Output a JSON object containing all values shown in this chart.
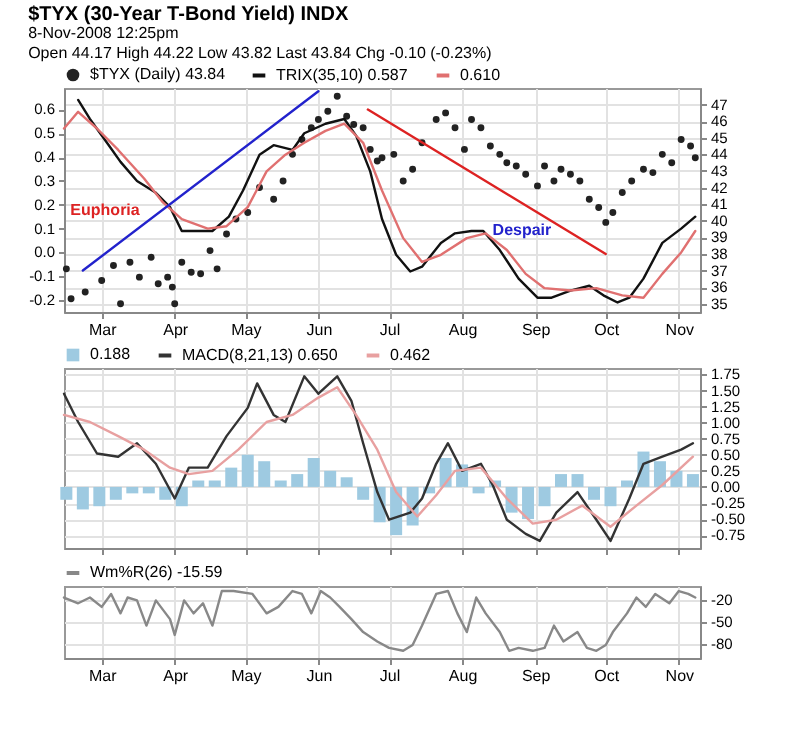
{
  "chart_data": [
    {
      "type": "line",
      "title": "$TYX (30-Year T-Bond Yield) INDX",
      "subtitle": "8-Nov-2008 12:25pm",
      "annotations": [
        "Open 44.17 High 44.22 Low 43.82 Last 43.84 Chg -0.10 (-0.23%)",
        "Euphoria",
        "Despair"
      ],
      "legend": "top left",
      "grid": true,
      "xlim": [
        "2008-02-14",
        "2008-11-10"
      ],
      "xticks": [
        {
          "value": "2008-03-01",
          "label": "Mar"
        },
        {
          "value": "2008-04-01",
          "label": "Apr"
        },
        {
          "value": "2008-05-01",
          "label": "May"
        },
        {
          "value": "2008-06-01",
          "label": "Jun"
        },
        {
          "value": "2008-07-01",
          "label": "Jul"
        },
        {
          "value": "2008-08-01",
          "label": "Aug"
        },
        {
          "value": "2008-09-01",
          "label": "Sep"
        },
        {
          "value": "2008-10-01",
          "label": "Oct"
        },
        {
          "value": "2008-11-01",
          "label": "Nov"
        }
      ],
      "ylim": [
        -0.25,
        0.69
      ],
      "yticks": [
        -0.2,
        -0.1,
        {
          "value": 0,
          "label": "0.0"
        },
        0.1,
        0.2,
        0.3,
        0.4,
        0.5,
        0.6
      ],
      "y2lim": [
        34.5,
        48
      ],
      "y2ticks": [
        35,
        36,
        37,
        38,
        39,
        40,
        41,
        42,
        43,
        44,
        45,
        46,
        47
      ],
      "series": [
        {
          "name": "$TYX (Daily) 43.84",
          "type": "scatter",
          "axis": "y2",
          "color": "#222222",
          "x": [
            "2008-02-15",
            "2008-02-17",
            "2008-02-23",
            "2008-03-01",
            "2008-03-06",
            "2008-03-09",
            "2008-03-13",
            "2008-03-17",
            "2008-03-22",
            "2008-03-25",
            "2008-03-29",
            "2008-03-31",
            "2008-04-01",
            "2008-04-04",
            "2008-04-08",
            "2008-04-12",
            "2008-04-16",
            "2008-04-19",
            "2008-04-23",
            "2008-04-27",
            "2008-05-02",
            "2008-05-07",
            "2008-05-13",
            "2008-05-17",
            "2008-05-21",
            "2008-05-25",
            "2008-05-29",
            "2008-06-01",
            "2008-06-05",
            "2008-06-09",
            "2008-06-13",
            "2008-06-16",
            "2008-06-20",
            "2008-06-23",
            "2008-06-26",
            "2008-06-28",
            "2008-07-03",
            "2008-07-07",
            "2008-07-11",
            "2008-07-15",
            "2008-07-21",
            "2008-07-25",
            "2008-07-29",
            "2008-08-02",
            "2008-08-05",
            "2008-08-09",
            "2008-08-13",
            "2008-08-17",
            "2008-08-20",
            "2008-08-24",
            "2008-08-28",
            "2008-09-02",
            "2008-09-05",
            "2008-09-09",
            "2008-09-12",
            "2008-09-16",
            "2008-09-20",
            "2008-09-24",
            "2008-09-28",
            "2008-10-01",
            "2008-10-04",
            "2008-10-08",
            "2008-10-12",
            "2008-10-17",
            "2008-10-21",
            "2008-10-25",
            "2008-10-29",
            "2008-11-02",
            "2008-11-06",
            "2008-11-08"
          ],
          "values": [
            37.1,
            35.3,
            35.7,
            36.4,
            37.3,
            35.0,
            37.5,
            36.6,
            37.8,
            36.2,
            36.6,
            36.0,
            35.0,
            37.5,
            36.9,
            36.8,
            38.2,
            37.1,
            39.2,
            40.1,
            40.5,
            42.0,
            41.3,
            42.4,
            44.0,
            44.9,
            45.6,
            46.1,
            46.6,
            47.5,
            46.3,
            45.8,
            45.6,
            44.3,
            43.6,
            43.8,
            44.0,
            42.4,
            43.1,
            44.7,
            46.1,
            46.5,
            45.6,
            44.3,
            46.1,
            45.6,
            44.5,
            44.0,
            43.5,
            43.3,
            42.8,
            42.1,
            43.3,
            42.4,
            43.1,
            42.8,
            42.4,
            41.3,
            40.8,
            39.9,
            40.5,
            41.7,
            42.4,
            43.1,
            42.9,
            44.0,
            43.5,
            44.9,
            44.5,
            43.8
          ]
        },
        {
          "name": "TRIX(35,10) 0.587",
          "color": "#111111",
          "x": [
            "2008-02-20",
            "2008-02-25",
            "2008-03-04",
            "2008-03-09",
            "2008-03-16",
            "2008-03-24",
            "2008-03-30",
            "2008-04-04",
            "2008-04-09",
            "2008-04-17",
            "2008-04-24",
            "2008-04-30",
            "2008-05-07",
            "2008-05-13",
            "2008-05-21",
            "2008-05-26",
            "2008-06-04",
            "2008-06-12",
            "2008-06-17",
            "2008-06-23",
            "2008-06-28",
            "2008-07-04",
            "2008-07-10",
            "2008-07-15",
            "2008-07-23",
            "2008-07-29",
            "2008-08-05",
            "2008-08-10",
            "2008-08-17",
            "2008-08-25",
            "2008-09-02",
            "2008-09-08",
            "2008-09-16",
            "2008-09-24",
            "2008-09-30",
            "2008-10-06",
            "2008-10-11",
            "2008-10-17",
            "2008-10-25",
            "2008-11-02",
            "2008-11-08"
          ],
          "values": [
            0.64,
            0.56,
            0.45,
            0.38,
            0.3,
            0.25,
            0.19,
            0.09,
            0.09,
            0.09,
            0.15,
            0.26,
            0.41,
            0.45,
            0.43,
            0.5,
            0.54,
            0.56,
            0.49,
            0.34,
            0.14,
            -0.01,
            -0.08,
            -0.06,
            0.04,
            0.08,
            0.09,
            0.09,
            0.01,
            -0.11,
            -0.19,
            -0.19,
            -0.16,
            -0.14,
            -0.18,
            -0.21,
            -0.19,
            -0.11,
            0.04,
            0.1,
            0.15
          ]
        },
        {
          "name": "0.610",
          "color": "#e07070",
          "x": [
            "2008-02-14",
            "2008-02-20",
            "2008-02-28",
            "2008-03-08",
            "2008-03-19",
            "2008-03-27",
            "2008-04-04",
            "2008-04-15",
            "2008-04-23",
            "2008-05-02",
            "2008-05-10",
            "2008-05-18",
            "2008-05-26",
            "2008-06-04",
            "2008-06-12",
            "2008-06-20",
            "2008-06-28",
            "2008-07-07",
            "2008-07-15",
            "2008-07-23",
            "2008-08-03",
            "2008-08-11",
            "2008-08-20",
            "2008-08-28",
            "2008-09-05",
            "2008-09-16",
            "2008-09-27",
            "2008-10-08",
            "2008-10-17",
            "2008-10-25",
            "2008-11-02",
            "2008-11-08"
          ],
          "values": [
            0.52,
            0.59,
            0.52,
            0.43,
            0.31,
            0.21,
            0.14,
            0.1,
            0.11,
            0.19,
            0.34,
            0.41,
            0.46,
            0.51,
            0.54,
            0.46,
            0.26,
            0.06,
            -0.04,
            -0.01,
            0.06,
            0.08,
            0.01,
            -0.09,
            -0.15,
            -0.16,
            -0.15,
            -0.18,
            -0.19,
            -0.09,
            0.0,
            0.09
          ]
        },
        {
          "axis": "y2",
          "color": "#2222cc",
          "x": [
            "2008-02-22",
            "2008-06-01"
          ],
          "values": [
            37.0,
            47.8
          ]
        },
        {
          "axis": "y2",
          "color": "#dd2222",
          "x": [
            "2008-06-22",
            "2008-10-01"
          ],
          "values": [
            46.7,
            38.0
          ]
        }
      ]
    },
    {
      "type": "line",
      "legend": "top left",
      "grid": true,
      "tick_labels": "y",
      "xlim": [
        "2008-02-14",
        "2008-11-10"
      ],
      "xticks": [
        {
          "value": "2008-03-01",
          "label": null
        },
        {
          "value": "2008-04-01",
          "label": null
        },
        {
          "value": "2008-05-01",
          "label": null
        },
        {
          "value": "2008-06-01",
          "label": null
        },
        {
          "value": "2008-07-01",
          "label": null
        },
        {
          "value": "2008-08-01",
          "label": null
        },
        {
          "value": "2008-09-01",
          "label": null
        },
        {
          "value": "2008-10-01",
          "label": null
        },
        {
          "value": "2008-11-01",
          "label": null
        }
      ],
      "y2lim": [
        -0.95,
        1.85
      ],
      "y2ticks": [
        -0.75,
        {
          "value": -0.5,
          "label": "-0.50"
        },
        -0.25,
        {
          "value": 0,
          "label": "0.00"
        },
        0.25,
        {
          "value": 0.5,
          "label": "0.50"
        },
        0.75,
        {
          "value": 1,
          "label": "1.00"
        },
        1.25,
        {
          "value": 1.5,
          "label": "1.50"
        },
        1.75
      ],
      "series": [
        {
          "name": "0.188",
          "type": "bar",
          "axis": "y2",
          "color": "#9ecae1",
          "x": [
            "2008-02-15",
            "2008-02-22",
            "2008-02-29",
            "2008-03-07",
            "2008-03-14",
            "2008-03-21",
            "2008-03-28",
            "2008-04-04",
            "2008-04-11",
            "2008-04-18",
            "2008-04-25",
            "2008-05-02",
            "2008-05-09",
            "2008-05-16",
            "2008-05-23",
            "2008-05-30",
            "2008-06-06",
            "2008-06-13",
            "2008-06-20",
            "2008-06-27",
            "2008-07-04",
            "2008-07-11",
            "2008-07-18",
            "2008-07-25",
            "2008-08-01",
            "2008-08-08",
            "2008-08-15",
            "2008-08-22",
            "2008-08-29",
            "2008-09-05",
            "2008-09-12",
            "2008-09-19",
            "2008-09-26",
            "2008-10-03",
            "2008-10-10",
            "2008-10-17",
            "2008-10-24",
            "2008-10-31",
            "2008-11-07"
          ],
          "values": [
            -0.2,
            -0.35,
            -0.3,
            -0.2,
            -0.1,
            -0.1,
            -0.2,
            -0.3,
            0.1,
            0.1,
            0.3,
            0.5,
            0.4,
            0.1,
            0.2,
            0.45,
            0.25,
            0.15,
            -0.2,
            -0.55,
            -0.75,
            -0.6,
            -0.1,
            0.45,
            0.35,
            -0.1,
            0.1,
            -0.4,
            -0.5,
            -0.3,
            0.2,
            0.2,
            -0.2,
            -0.3,
            0.1,
            0.55,
            0.4,
            0.25,
            0.2
          ]
        },
        {
          "name": "MACD(8,21,13) 0.650",
          "axis": "y2",
          "color": "#333333",
          "x": [
            "2008-02-14",
            "2008-02-20",
            "2008-02-28",
            "2008-03-08",
            "2008-03-16",
            "2008-03-24",
            "2008-04-01",
            "2008-04-07",
            "2008-04-15",
            "2008-04-23",
            "2008-05-02",
            "2008-05-06",
            "2008-05-13",
            "2008-05-18",
            "2008-05-26",
            "2008-06-01",
            "2008-06-09",
            "2008-06-15",
            "2008-06-20",
            "2008-06-26",
            "2008-07-01",
            "2008-07-10",
            "2008-07-15",
            "2008-07-21",
            "2008-07-26",
            "2008-08-01",
            "2008-08-09",
            "2008-08-14",
            "2008-08-20",
            "2008-08-28",
            "2008-09-03",
            "2008-09-10",
            "2008-09-19",
            "2008-09-27",
            "2008-10-03",
            "2008-10-11",
            "2008-10-17",
            "2008-10-25",
            "2008-11-02",
            "2008-11-07"
          ],
          "values": [
            1.45,
            1.01,
            0.52,
            0.47,
            0.68,
            0.36,
            -0.18,
            0.3,
            0.3,
            0.79,
            1.23,
            1.61,
            1.12,
            1.01,
            1.72,
            1.45,
            1.72,
            1.34,
            0.68,
            -0.08,
            -0.51,
            -0.4,
            -0.18,
            0.36,
            0.68,
            0.25,
            0.36,
            0.03,
            -0.51,
            -0.73,
            -0.84,
            -0.4,
            -0.08,
            -0.51,
            -0.84,
            -0.18,
            0.36,
            0.47,
            0.58,
            0.68
          ]
        },
        {
          "name": "0.462",
          "axis": "y2",
          "color": "#e8a0a0",
          "x": [
            "2008-02-14",
            "2008-02-25",
            "2008-03-08",
            "2008-03-19",
            "2008-03-30",
            "2008-04-07",
            "2008-04-17",
            "2008-04-28",
            "2008-05-10",
            "2008-05-21",
            "2008-06-01",
            "2008-06-09",
            "2008-06-17",
            "2008-06-26",
            "2008-07-04",
            "2008-07-13",
            "2008-07-21",
            "2008-07-29",
            "2008-08-09",
            "2008-08-20",
            "2008-08-31",
            "2008-09-10",
            "2008-09-21",
            "2008-10-03",
            "2008-10-14",
            "2008-10-25",
            "2008-11-07"
          ],
          "values": [
            1.12,
            1.01,
            0.79,
            0.58,
            0.3,
            0.2,
            0.25,
            0.58,
            1.01,
            1.12,
            1.39,
            1.55,
            1.12,
            0.58,
            -0.08,
            -0.46,
            -0.13,
            0.25,
            0.3,
            -0.18,
            -0.57,
            -0.51,
            -0.29,
            -0.62,
            -0.29,
            0.03,
            0.47
          ]
        }
      ]
    },
    {
      "type": "line",
      "legend": "top left",
      "grid": true,
      "xlim": [
        "2008-02-14",
        "2008-11-10"
      ],
      "xticks": [
        {
          "value": "2008-03-01",
          "label": "Mar"
        },
        {
          "value": "2008-04-01",
          "label": "Apr"
        },
        {
          "value": "2008-05-01",
          "label": "May"
        },
        {
          "value": "2008-06-01",
          "label": "Jun"
        },
        {
          "value": "2008-07-01",
          "label": "Jul"
        },
        {
          "value": "2008-08-01",
          "label": "Aug"
        },
        {
          "value": "2008-09-01",
          "label": "Sep"
        },
        {
          "value": "2008-10-01",
          "label": "Oct"
        },
        {
          "value": "2008-11-01",
          "label": "Nov"
        }
      ],
      "y2lim": [
        -100,
        0
      ],
      "y2ticks": [
        -20,
        -50,
        -80
      ],
      "series": [
        {
          "name": "Wm%R(26) -15.59",
          "axis": "y2",
          "color": "#888888",
          "x": [
            "2008-02-14",
            "2008-02-20",
            "2008-02-25",
            "2008-03-01",
            "2008-03-05",
            "2008-03-09",
            "2008-03-12",
            "2008-03-16",
            "2008-03-20",
            "2008-03-24",
            "2008-03-30",
            "2008-04-01",
            "2008-04-05",
            "2008-04-09",
            "2008-04-13",
            "2008-04-17",
            "2008-04-21",
            "2008-04-26",
            "2008-05-04",
            "2008-05-10",
            "2008-05-15",
            "2008-05-21",
            "2008-05-25",
            "2008-05-29",
            "2008-06-02",
            "2008-06-06",
            "2008-06-10",
            "2008-06-15",
            "2008-06-20",
            "2008-06-26",
            "2008-07-01",
            "2008-07-07",
            "2008-07-11",
            "2008-07-15",
            "2008-07-21",
            "2008-07-26",
            "2008-07-30",
            "2008-08-03",
            "2008-08-07",
            "2008-08-11",
            "2008-08-17",
            "2008-08-21",
            "2008-08-25",
            "2008-08-31",
            "2008-09-05",
            "2008-09-09",
            "2008-09-13",
            "2008-09-19",
            "2008-09-23",
            "2008-09-27",
            "2008-10-01",
            "2008-10-04",
            "2008-10-10",
            "2008-10-14",
            "2008-10-18",
            "2008-10-22",
            "2008-10-28",
            "2008-11-01",
            "2008-11-05",
            "2008-11-08"
          ],
          "values": [
            -16,
            -24,
            -16,
            -29,
            -11,
            -38,
            -16,
            -20,
            -55,
            -20,
            -46,
            -68,
            -20,
            -38,
            -24,
            -55,
            -7,
            -7,
            -11,
            -38,
            -29,
            -7,
            -11,
            -38,
            -7,
            -16,
            -29,
            -46,
            -64,
            -77,
            -86,
            -90,
            -82,
            -55,
            -11,
            -7,
            -38,
            -64,
            -16,
            -38,
            -64,
            -90,
            -86,
            -90,
            -86,
            -55,
            -77,
            -64,
            -86,
            -90,
            -82,
            -64,
            -38,
            -16,
            -29,
            -11,
            -24,
            -7,
            -11,
            -16
          ]
        }
      ]
    }
  ]
}
